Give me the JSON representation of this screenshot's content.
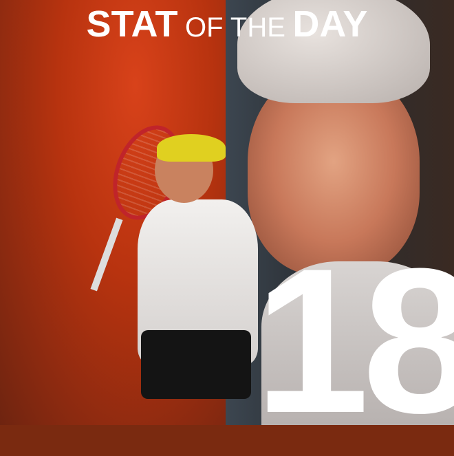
{
  "title": {
    "word1": "STAT",
    "word2": "OF THE",
    "word3": "DAY"
  },
  "stat": {
    "value": "18"
  },
  "colors": {
    "left_background": "#b8330f",
    "right_background": "#2a2e33",
    "text": "#ffffff"
  }
}
